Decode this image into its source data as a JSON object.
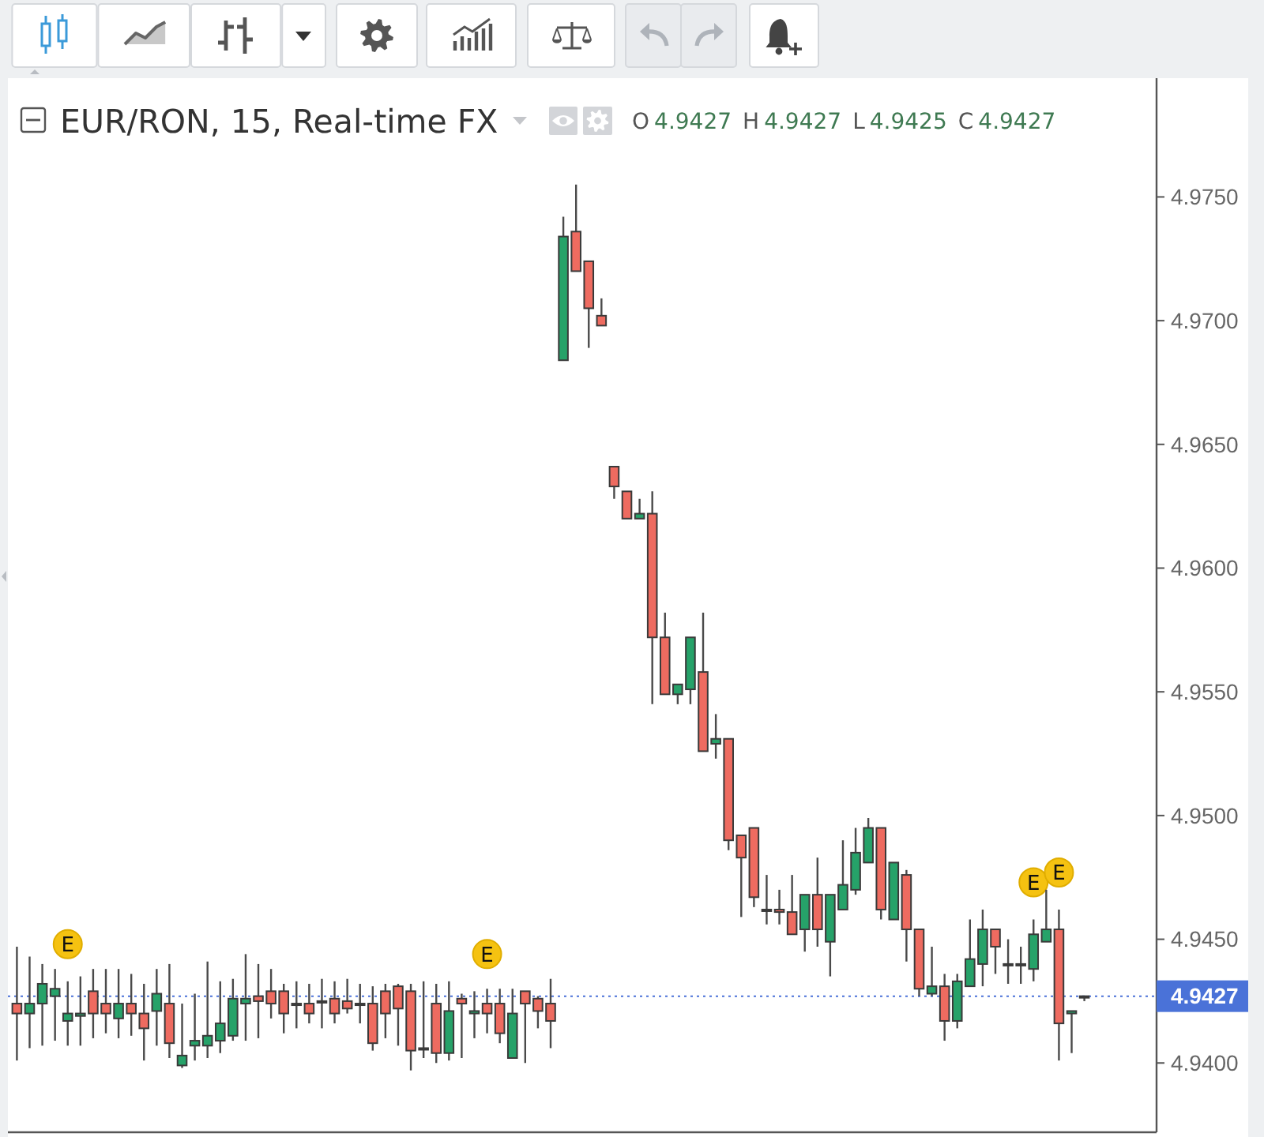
{
  "chart_data": {
    "type": "candlestick",
    "title": "EUR/RON, 15, Real-time FX",
    "subtitle": "O 4.9427 H 4.9427 L 4.9425 C 4.9427",
    "categories": [
      null,
      null,
      null,
      null,
      null,
      null,
      null,
      null,
      null,
      null,
      null,
      null,
      null,
      null,
      null,
      null,
      null,
      null,
      null,
      null,
      null,
      null,
      null,
      null,
      null,
      null,
      null,
      null,
      null,
      null,
      null,
      null,
      null,
      null,
      null,
      null,
      null,
      null,
      null,
      null,
      null,
      null,
      null,
      null,
      null,
      null,
      null,
      null,
      null,
      null,
      null,
      null,
      null,
      null,
      null,
      null,
      null,
      null,
      null,
      null,
      null,
      null,
      null,
      null,
      null,
      null,
      null,
      null,
      null,
      null,
      null,
      null,
      null,
      null,
      null,
      null,
      null,
      null,
      null,
      null,
      null,
      null,
      null,
      null,
      null
    ],
    "ohlc": [
      [
        4.9424,
        4.9447,
        4.9401,
        4.942
      ],
      [
        4.942,
        4.9443,
        4.9406,
        4.9424
      ],
      [
        4.9424,
        4.944,
        4.9407,
        4.9432
      ],
      [
        4.9427,
        4.9438,
        4.9409,
        4.943
      ],
      [
        4.9417,
        4.9433,
        4.9407,
        4.942
      ],
      [
        4.9419,
        4.9435,
        4.9407,
        4.942
      ],
      [
        4.9429,
        4.9438,
        4.941,
        4.942
      ],
      [
        4.9424,
        4.9438,
        4.9412,
        4.942
      ],
      [
        4.9418,
        4.9438,
        4.941,
        4.9424
      ],
      [
        4.9424,
        4.9436,
        4.9411,
        4.942
      ],
      [
        4.942,
        4.9432,
        4.9401,
        4.9414
      ],
      [
        4.9421,
        4.9438,
        4.9407,
        4.9428
      ],
      [
        4.9424,
        4.944,
        4.9402,
        4.9408
      ],
      [
        4.9399,
        4.9424,
        4.9398,
        4.9403
      ],
      [
        4.9407,
        4.9428,
        4.9401,
        4.9409
      ],
      [
        4.9407,
        4.9441,
        4.9402,
        4.9411
      ],
      [
        4.9409,
        4.9433,
        4.9404,
        4.9416
      ],
      [
        4.9411,
        4.9434,
        4.9409,
        4.9426
      ],
      [
        4.9424,
        4.9444,
        4.9409,
        4.9426
      ],
      [
        4.9427,
        4.944,
        4.941,
        4.9425
      ],
      [
        4.9429,
        4.9438,
        4.9418,
        4.9424
      ],
      [
        4.9429,
        4.9432,
        4.9412,
        4.942
      ],
      [
        4.9424,
        4.9433,
        4.9414,
        4.9424
      ],
      [
        4.9424,
        4.9432,
        4.9416,
        4.942
      ],
      [
        4.9425,
        4.9434,
        4.9414,
        4.9425
      ],
      [
        4.9426,
        4.9433,
        4.9416,
        4.942
      ],
      [
        4.9425,
        4.9434,
        4.942,
        4.9422
      ],
      [
        4.9424,
        4.9432,
        4.9416,
        4.9424
      ],
      [
        4.9424,
        4.9431,
        4.9405,
        4.9408
      ],
      [
        4.9429,
        4.9432,
        4.941,
        4.942
      ],
      [
        4.9431,
        4.9432,
        4.9407,
        4.9422
      ],
      [
        4.9429,
        4.9432,
        4.9397,
        4.9405
      ],
      [
        4.9406,
        4.9433,
        4.9402,
        4.9406
      ],
      [
        4.9424,
        4.9432,
        4.94,
        4.9404
      ],
      [
        4.9404,
        4.9433,
        4.9401,
        4.9421
      ],
      [
        4.9426,
        4.9428,
        4.9402,
        4.9424
      ],
      [
        4.942,
        4.9429,
        4.941,
        4.9421
      ],
      [
        4.9424,
        4.943,
        4.9412,
        4.942
      ],
      [
        4.9424,
        4.943,
        4.9408,
        4.9412
      ],
      [
        4.9402,
        4.943,
        4.9402,
        4.942
      ],
      [
        4.9429,
        4.9429,
        4.94,
        4.9424
      ],
      [
        4.9426,
        4.9427,
        4.9414,
        4.9421
      ],
      [
        4.9424,
        4.9434,
        4.9406,
        4.9417
      ],
      [
        4.9684,
        4.9742,
        4.9684,
        4.9734
      ],
      [
        4.9736,
        4.9755,
        4.972,
        4.972
      ],
      [
        4.9724,
        4.9724,
        4.9689,
        4.9705
      ],
      [
        4.9702,
        4.9709,
        4.9698,
        4.9698
      ],
      [
        4.9641,
        4.9641,
        4.9628,
        4.9633
      ],
      [
        4.9631,
        4.9631,
        4.962,
        4.962
      ],
      [
        4.962,
        4.9628,
        4.962,
        4.9622
      ],
      [
        4.9622,
        4.9631,
        4.9545,
        4.9572
      ],
      [
        4.9572,
        4.9582,
        4.9549,
        4.9549
      ],
      [
        4.9549,
        4.9553,
        4.9545,
        4.9553
      ],
      [
        4.9551,
        4.9572,
        4.9545,
        4.9572
      ],
      [
        4.9558,
        4.9582,
        4.9526,
        4.9526
      ],
      [
        4.9529,
        4.9541,
        4.9523,
        4.9531
      ],
      [
        4.9531,
        4.9531,
        4.9486,
        4.949
      ],
      [
        4.9492,
        4.9492,
        4.9459,
        4.9483
      ],
      [
        4.9495,
        4.9495,
        4.9463,
        4.9467
      ],
      [
        4.9462,
        4.9476,
        4.9456,
        4.9462
      ],
      [
        4.9462,
        4.947,
        4.9456,
        4.9461
      ],
      [
        4.9461,
        4.9476,
        4.9452,
        4.9452
      ],
      [
        4.9454,
        4.9468,
        4.9445,
        4.9468
      ],
      [
        4.9468,
        4.9483,
        4.9447,
        4.9454
      ],
      [
        4.9449,
        4.9468,
        4.9435,
        4.9468
      ],
      [
        4.9462,
        4.949,
        4.9462,
        4.9472
      ],
      [
        4.947,
        4.9495,
        4.9468,
        4.9485
      ],
      [
        4.9481,
        4.9499,
        4.9481,
        4.9495
      ],
      [
        4.9495,
        4.9495,
        4.9458,
        4.9462
      ],
      [
        4.9458,
        4.9481,
        4.9458,
        4.9481
      ],
      [
        4.9476,
        4.9478,
        4.9441,
        4.9454
      ],
      [
        4.9454,
        4.9454,
        4.9427,
        4.943
      ],
      [
        4.9428,
        4.9447,
        4.9427,
        4.9431
      ],
      [
        4.9431,
        4.9436,
        4.9409,
        4.9417
      ],
      [
        4.9417,
        4.9436,
        4.9414,
        4.9433
      ],
      [
        4.9431,
        4.9458,
        4.9431,
        4.9442
      ],
      [
        4.944,
        4.9462,
        4.9431,
        4.9454
      ],
      [
        4.9454,
        4.9454,
        4.9436,
        4.9447
      ],
      [
        4.944,
        4.945,
        4.9432,
        4.944
      ],
      [
        4.944,
        4.9447,
        4.9432,
        4.944
      ],
      [
        4.9438,
        4.9458,
        4.9433,
        4.9452
      ],
      [
        4.9449,
        4.947,
        4.9449,
        4.9454
      ],
      [
        4.9454,
        4.9462,
        4.9401,
        4.9416
      ],
      [
        4.942,
        4.9421,
        4.9404,
        4.9421
      ],
      [
        4.9427,
        4.9427,
        4.9425,
        4.9427
      ]
    ],
    "colors": [
      "#ee6b60",
      "#26a269",
      "#26a269",
      "#26a269",
      "#26a269",
      "#26a269",
      "#ee6b60",
      "#ee6b60",
      "#26a269",
      "#ee6b60",
      "#ee6b60",
      "#26a269",
      "#ee6b60",
      "#26a269",
      "#26a269",
      "#26a269",
      "#26a269",
      "#26a269",
      "#26a269",
      "#ee6b60",
      "#ee6b60",
      "#ee6b60",
      "#26a269",
      "#ee6b60",
      "#26a269",
      "#ee6b60",
      "#ee6b60",
      "#26a269",
      "#ee6b60",
      "#ee6b60",
      "#ee6b60",
      "#ee6b60",
      "#26a269",
      "#ee6b60",
      "#26a269",
      "#ee6b60",
      "#26a269",
      "#ee6b60",
      "#ee6b60",
      "#26a269",
      "#ee6b60",
      "#ee6b60",
      "#ee6b60",
      "#26a269",
      "#ee6b60",
      "#ee6b60",
      "#ee6b60",
      "#ee6b60",
      "#ee6b60",
      "#26a269",
      "#ee6b60",
      "#ee6b60",
      "#26a269",
      "#26a269",
      "#ee6b60",
      "#26a269",
      "#ee6b60",
      "#ee6b60",
      "#ee6b60",
      "#26a269",
      "#ee6b60",
      "#ee6b60",
      "#26a269",
      "#ee6b60",
      "#26a269",
      "#26a269",
      "#26a269",
      "#26a269",
      "#ee6b60",
      "#26a269",
      "#ee6b60",
      "#ee6b60",
      "#26a269",
      "#ee6b60",
      "#26a269",
      "#26a269",
      "#26a269",
      "#ee6b60",
      "#26a269",
      "#26a269",
      "#26a269",
      "#26a269",
      "#ee6b60",
      "#26a269",
      "#26a269"
    ],
    "series": [
      {
        "type": "scatter",
        "color": "#f5c211",
        "marker": "circle",
        "values": [
          null,
          null,
          null,
          null,
          4.9448,
          null,
          null,
          null,
          null,
          null,
          null,
          null,
          null,
          null,
          null,
          null,
          null,
          null,
          null,
          null,
          null,
          null,
          null,
          null,
          null,
          null,
          null,
          null,
          null,
          null,
          null,
          null,
          null,
          null,
          null,
          null,
          null,
          4.9444,
          null,
          null,
          null,
          null,
          null,
          null,
          null,
          null,
          null,
          null,
          null,
          null,
          null,
          null,
          null,
          null,
          null,
          null,
          null,
          null,
          null,
          null,
          null,
          null,
          null,
          null,
          null,
          null,
          null,
          null,
          null,
          null,
          null,
          null,
          null,
          null,
          null,
          null,
          null,
          null,
          null,
          null,
          4.9473,
          null,
          4.9477,
          null,
          null
        ],
        "value_labels": [
          null,
          null,
          null,
          null,
          "E",
          null,
          null,
          null,
          null,
          null,
          null,
          null,
          null,
          null,
          null,
          null,
          null,
          null,
          null,
          null,
          null,
          null,
          null,
          null,
          null,
          null,
          null,
          null,
          null,
          null,
          null,
          null,
          null,
          null,
          null,
          null,
          null,
          "E",
          null,
          null,
          null,
          null,
          null,
          null,
          null,
          null,
          null,
          null,
          null,
          null,
          null,
          null,
          null,
          null,
          null,
          null,
          null,
          null,
          null,
          null,
          null,
          null,
          null,
          null,
          null,
          null,
          null,
          null,
          null,
          null,
          null,
          null,
          null,
          null,
          null,
          null,
          null,
          null,
          null,
          null,
          "E",
          null,
          "E",
          null,
          null
        ]
      }
    ],
    "ylim": [
      4.9372,
      4.9798
    ],
    "yticks": [
      {
        "value": 4.94,
        "label": "4.9400"
      },
      {
        "value": 4.945,
        "label": "4.9450"
      },
      {
        "value": 4.95,
        "label": "4.9500"
      },
      {
        "value": 4.955,
        "label": "4.9550"
      },
      {
        "value": 4.96,
        "label": "4.9600"
      },
      {
        "value": 4.965,
        "label": "4.9650"
      },
      {
        "value": 4.97,
        "label": "4.9700"
      },
      {
        "value": 4.975,
        "label": "4.9750"
      }
    ],
    "ref_lines": [
      {
        "axis": "y",
        "value": 4.9427,
        "label": "4.9427",
        "color": "#4a72d8",
        "line_style": "dotted"
      }
    ]
  }
}
